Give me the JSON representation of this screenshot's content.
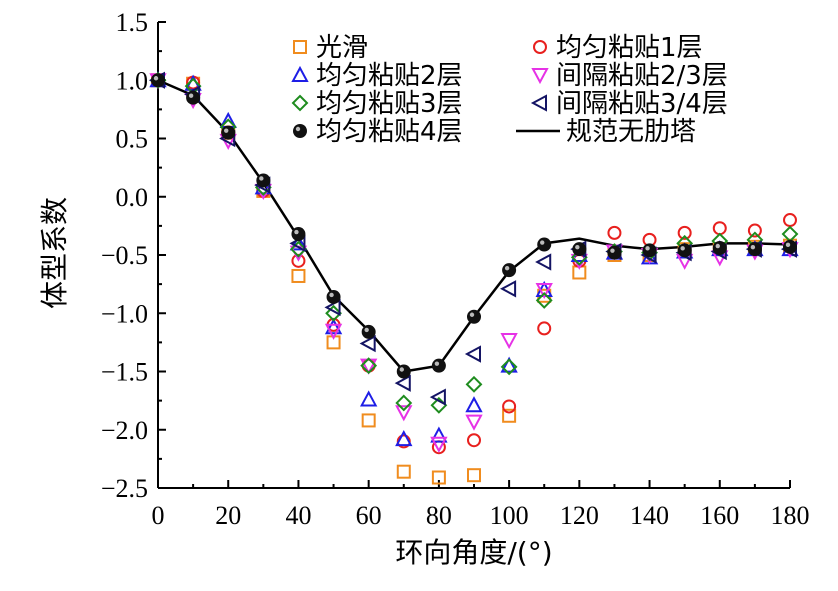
{
  "chart_data": {
    "type": "scatter",
    "xlabel": "环向角度/(°)",
    "ylabel": "体型系数",
    "xlim": [
      0,
      180
    ],
    "ylim": [
      -2.5,
      1.5
    ],
    "x_ticks": [
      "0",
      "20",
      "40",
      "60",
      "80",
      "100",
      "120",
      "140",
      "160",
      "180"
    ],
    "y_ticks": [
      "1.5",
      "1.0",
      "0.5",
      "0.0",
      "−0.5",
      "−1.0",
      "−1.5",
      "−2.0",
      "−2.5"
    ],
    "grid": false,
    "legend_position": "top",
    "series": [
      {
        "name": "光滑",
        "marker": "square",
        "color": "#f08c1e",
        "x": [
          0,
          10,
          20,
          30,
          40,
          50,
          60,
          70,
          80,
          90,
          100,
          110,
          120,
          130,
          140,
          150,
          160,
          170,
          180
        ],
        "y": [
          1.0,
          0.97,
          0.55,
          0.05,
          -0.68,
          -1.25,
          -1.92,
          -2.36,
          -2.41,
          -2.39,
          -1.88,
          -0.85,
          -0.65,
          -0.5,
          -0.5,
          -0.45,
          -0.45,
          -0.43,
          -0.42
        ]
      },
      {
        "name": "均匀粘贴1层",
        "marker": "circle",
        "color": "#e8201e",
        "x": [
          0,
          10,
          20,
          30,
          40,
          50,
          60,
          70,
          80,
          90,
          100,
          110,
          120,
          130,
          140,
          150,
          160,
          170,
          180
        ],
        "y": [
          1.0,
          0.98,
          0.55,
          0.05,
          -0.55,
          -1.1,
          -1.45,
          -2.1,
          -2.15,
          -2.09,
          -1.8,
          -1.13,
          -0.55,
          -0.31,
          -0.37,
          -0.31,
          -0.27,
          -0.29,
          -0.2
        ]
      },
      {
        "name": "均匀粘贴2层",
        "marker": "triangle-up",
        "color": "#1e1ee6",
        "x": [
          0,
          10,
          20,
          30,
          40,
          50,
          60,
          70,
          80,
          90,
          100,
          110,
          120,
          130,
          140,
          150,
          160,
          170,
          180
        ],
        "y": [
          1.0,
          0.97,
          0.65,
          0.08,
          -0.4,
          -1.12,
          -1.74,
          -2.08,
          -2.05,
          -1.79,
          -1.45,
          -0.8,
          -0.5,
          -0.48,
          -0.52,
          -0.47,
          -0.45,
          -0.45,
          -0.45
        ]
      },
      {
        "name": "间隔粘贴2/3层",
        "marker": "triangle-down",
        "color": "#e632e6",
        "x": [
          0,
          10,
          20,
          30,
          40,
          50,
          60,
          70,
          80,
          90,
          100,
          110,
          120,
          130,
          140,
          150,
          160,
          170,
          180
        ],
        "y": [
          1.0,
          0.83,
          0.48,
          0.05,
          -0.48,
          -1.15,
          -1.45,
          -1.85,
          -2.12,
          -1.93,
          -1.23,
          -0.8,
          -0.55,
          -0.47,
          -0.5,
          -0.55,
          -0.52,
          -0.47,
          -0.45
        ]
      },
      {
        "name": "均匀粘贴3层",
        "marker": "diamond",
        "color": "#1e8c1e",
        "x": [
          0,
          10,
          20,
          30,
          40,
          50,
          60,
          70,
          80,
          90,
          100,
          110,
          120,
          130,
          140,
          150,
          160,
          170,
          180
        ],
        "y": [
          1.0,
          0.95,
          0.6,
          0.08,
          -0.45,
          -1.0,
          -1.45,
          -1.77,
          -1.79,
          -1.61,
          -1.46,
          -0.89,
          -0.52,
          -0.47,
          -0.48,
          -0.4,
          -0.38,
          -0.37,
          -0.32
        ]
      },
      {
        "name": "间隔粘贴3/4层",
        "marker": "triangle-left",
        "color": "#141464",
        "x": [
          0,
          10,
          20,
          30,
          40,
          50,
          60,
          70,
          80,
          90,
          100,
          110,
          120,
          130,
          140,
          150,
          160,
          170,
          180
        ],
        "y": [
          1.0,
          0.88,
          0.5,
          0.1,
          -0.4,
          -0.95,
          -1.26,
          -1.6,
          -1.72,
          -1.35,
          -0.79,
          -0.56,
          -0.45,
          -0.47,
          -0.5,
          -0.48,
          -0.47,
          -0.45,
          -0.45
        ]
      },
      {
        "name": "均匀粘贴4层",
        "marker": "ball",
        "color": "#000000",
        "x": [
          0,
          10,
          20,
          30,
          40,
          50,
          60,
          70,
          80,
          90,
          100,
          110,
          120,
          130,
          140,
          150,
          160,
          170,
          180
        ],
        "y": [
          1.0,
          0.85,
          0.55,
          0.14,
          -0.32,
          -0.86,
          -1.16,
          -1.5,
          -1.45,
          -1.03,
          -0.63,
          -0.41,
          -0.45,
          -0.48,
          -0.46,
          -0.46,
          -0.44,
          -0.45,
          -0.43
        ]
      },
      {
        "name": "规范无肋塔",
        "marker": "line",
        "color": "#000000",
        "x": [
          0,
          10,
          20,
          30,
          40,
          50,
          60,
          70,
          80,
          90,
          100,
          110,
          120,
          130,
          140,
          150,
          160,
          170,
          180
        ],
        "y": [
          1.0,
          0.87,
          0.55,
          0.12,
          -0.35,
          -0.85,
          -1.15,
          -1.5,
          -1.45,
          -1.03,
          -0.64,
          -0.4,
          -0.36,
          -0.42,
          -0.45,
          -0.43,
          -0.4,
          -0.4,
          -0.41
        ]
      }
    ],
    "legend_columns": [
      [
        "光滑",
        "均匀粘贴2层",
        "均匀粘贴3层",
        "均匀粘贴4层"
      ],
      [
        "均匀粘贴1层",
        "间隔粘贴2/3层",
        "间隔粘贴3/4层",
        "规范无肋塔"
      ]
    ]
  }
}
